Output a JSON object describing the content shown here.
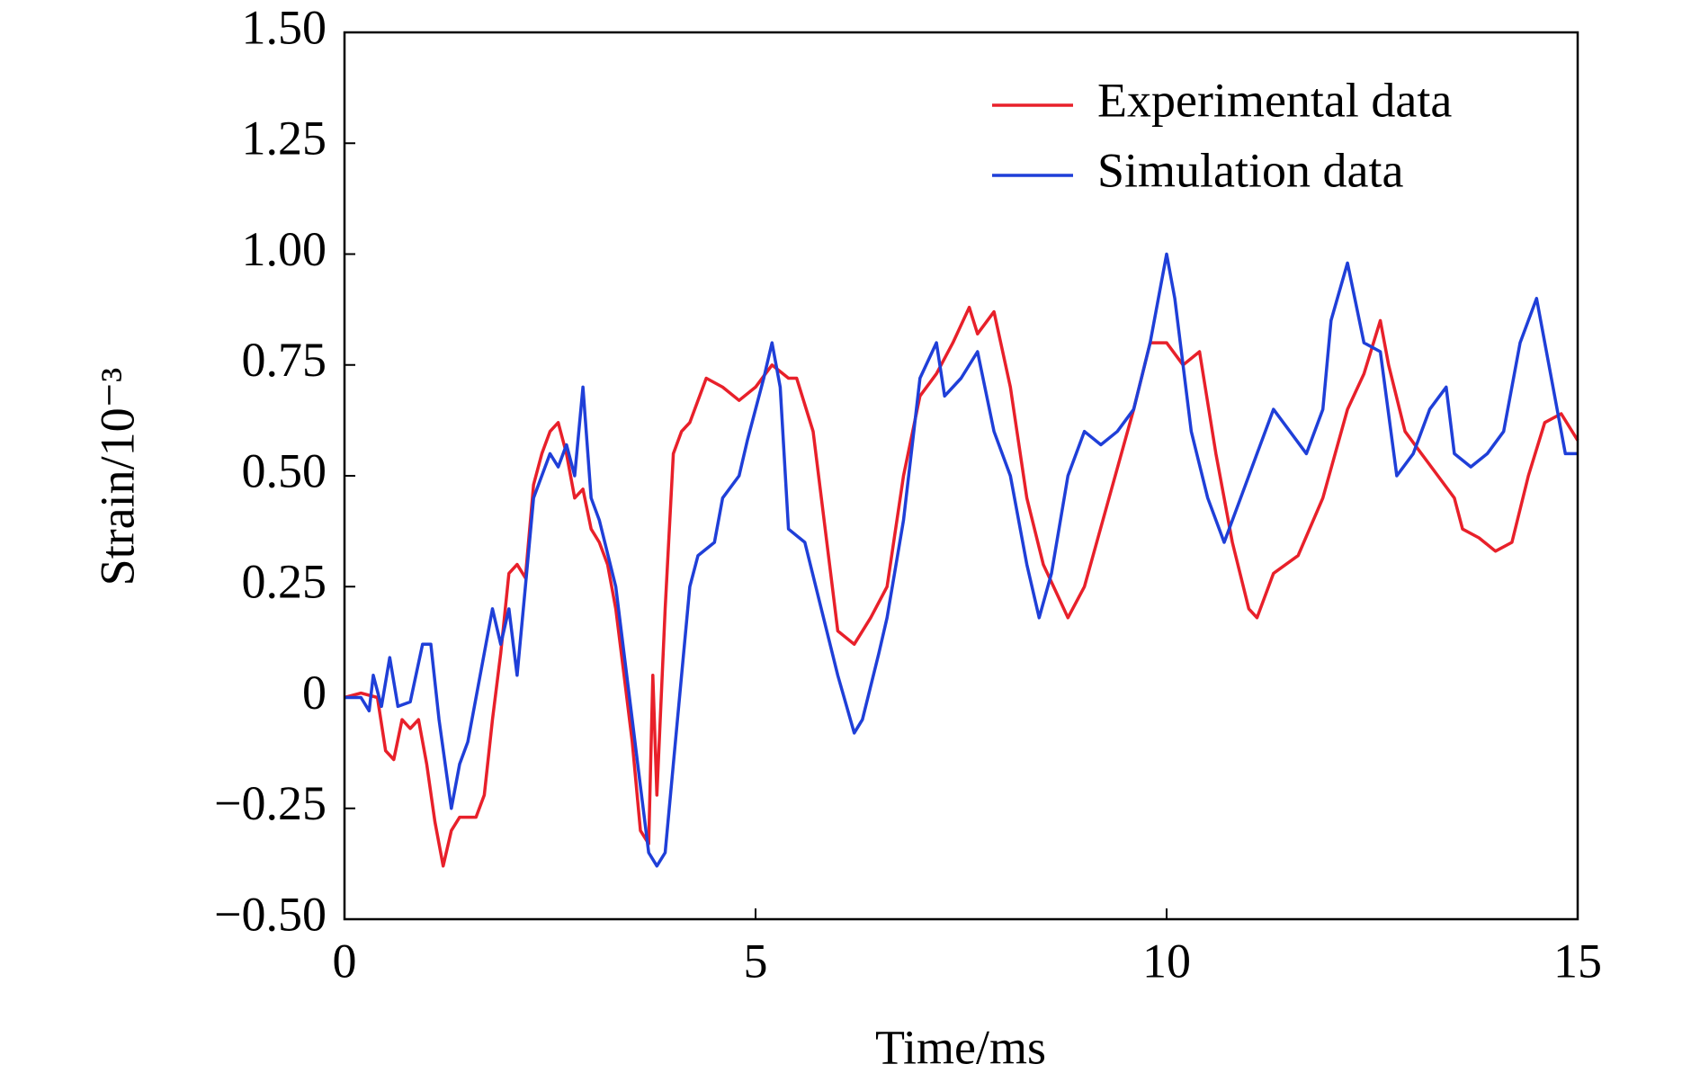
{
  "chart_data": {
    "type": "line",
    "xlabel": "Time/ms",
    "ylabel": "Strain/10⁻³",
    "xlim": [
      0,
      15
    ],
    "xticks": [
      0,
      5,
      10,
      15
    ],
    "ylim": [
      -0.5,
      1.5
    ],
    "yticks": [
      {
        "value": -0.5,
        "label": "−0.50"
      },
      {
        "value": -0.25,
        "label": "−0.25"
      },
      0,
      {
        "value": 0.25,
        "label": "0.25"
      },
      {
        "value": 0.5,
        "label": "0.50"
      },
      {
        "value": 0.75,
        "label": "0.75"
      },
      {
        "value": 1.0,
        "label": "1.00"
      },
      {
        "value": 1.25,
        "label": "1.25"
      },
      {
        "value": 1.5,
        "label": "1.50"
      }
    ],
    "legend": "upper right",
    "grid": false,
    "series": [
      {
        "name": "Experimental data",
        "color": "#e8202a",
        "x": [
          0,
          0.2,
          0.4,
          0.5,
          0.6,
          0.7,
          0.8,
          0.9,
          1.0,
          1.1,
          1.2,
          1.3,
          1.4,
          1.6,
          1.7,
          1.8,
          1.9,
          2.0,
          2.1,
          2.2,
          2.3,
          2.4,
          2.5,
          2.6,
          2.7,
          2.8,
          2.9,
          3.0,
          3.1,
          3.2,
          3.3,
          3.4,
          3.5,
          3.6,
          3.7,
          3.75,
          3.8,
          3.9,
          4.0,
          4.1,
          4.2,
          4.4,
          4.6,
          4.8,
          5.0,
          5.2,
          5.4,
          5.5,
          5.7,
          5.9,
          6.0,
          6.2,
          6.4,
          6.6,
          6.8,
          7.0,
          7.2,
          7.4,
          7.6,
          7.7,
          7.9,
          8.1,
          8.3,
          8.5,
          8.7,
          8.8,
          9.0,
          9.3,
          9.6,
          9.8,
          10.0,
          10.2,
          10.4,
          10.6,
          10.8,
          11.0,
          11.1,
          11.3,
          11.6,
          11.9,
          12.2,
          12.4,
          12.6,
          12.7,
          12.9,
          13.1,
          13.3,
          13.5,
          13.6,
          13.8,
          14.0,
          14.2,
          14.4,
          14.6,
          14.8,
          15.0
        ],
        "values": [
          0,
          0.01,
          0,
          -0.12,
          -0.14,
          -0.05,
          -0.07,
          -0.05,
          -0.15,
          -0.28,
          -0.38,
          -0.3,
          -0.27,
          -0.27,
          -0.22,
          -0.05,
          0.1,
          0.28,
          0.3,
          0.27,
          0.48,
          0.55,
          0.6,
          0.62,
          0.55,
          0.45,
          0.47,
          0.38,
          0.35,
          0.3,
          0.2,
          0.05,
          -0.1,
          -0.3,
          -0.33,
          0.05,
          -0.22,
          0.2,
          0.55,
          0.6,
          0.62,
          0.72,
          0.7,
          0.67,
          0.7,
          0.75,
          0.72,
          0.72,
          0.6,
          0.3,
          0.15,
          0.12,
          0.18,
          0.25,
          0.5,
          0.68,
          0.73,
          0.8,
          0.88,
          0.82,
          0.87,
          0.7,
          0.45,
          0.3,
          0.22,
          0.18,
          0.25,
          0.45,
          0.65,
          0.8,
          0.8,
          0.75,
          0.78,
          0.55,
          0.35,
          0.2,
          0.18,
          0.28,
          0.32,
          0.45,
          0.65,
          0.73,
          0.85,
          0.75,
          0.6,
          0.55,
          0.5,
          0.45,
          0.38,
          0.36,
          0.33,
          0.35,
          0.5,
          0.62,
          0.64,
          0.58
        ]
      },
      {
        "name": "Simulation data",
        "color": "#1f3fd8",
        "x": [
          0,
          0.2,
          0.3,
          0.35,
          0.45,
          0.55,
          0.65,
          0.8,
          0.95,
          1.05,
          1.15,
          1.3,
          1.4,
          1.5,
          1.7,
          1.8,
          1.9,
          2.0,
          2.1,
          2.2,
          2.3,
          2.5,
          2.6,
          2.7,
          2.8,
          2.9,
          3.0,
          3.1,
          3.3,
          3.5,
          3.6,
          3.7,
          3.8,
          3.9,
          4.0,
          4.2,
          4.3,
          4.5,
          4.6,
          4.8,
          4.9,
          5.1,
          5.2,
          5.3,
          5.4,
          5.6,
          5.8,
          6.0,
          6.2,
          6.3,
          6.5,
          6.6,
          6.8,
          7.0,
          7.2,
          7.3,
          7.5,
          7.7,
          7.9,
          8.1,
          8.3,
          8.45,
          8.6,
          8.8,
          9.0,
          9.2,
          9.4,
          9.6,
          9.8,
          10.0,
          10.1,
          10.3,
          10.5,
          10.7,
          10.9,
          11.1,
          11.3,
          11.5,
          11.7,
          11.9,
          12.0,
          12.2,
          12.4,
          12.6,
          12.8,
          13.0,
          13.2,
          13.4,
          13.5,
          13.7,
          13.9,
          14.1,
          14.3,
          14.5,
          14.7,
          14.85,
          15.0
        ],
        "values": [
          0,
          0,
          -0.03,
          0.05,
          -0.02,
          0.09,
          -0.02,
          -0.01,
          0.12,
          0.12,
          -0.05,
          -0.25,
          -0.15,
          -0.1,
          0.1,
          0.2,
          0.12,
          0.2,
          0.05,
          0.25,
          0.45,
          0.55,
          0.52,
          0.57,
          0.5,
          0.7,
          0.45,
          0.4,
          0.25,
          -0.05,
          -0.2,
          -0.35,
          -0.38,
          -0.35,
          -0.15,
          0.25,
          0.32,
          0.35,
          0.45,
          0.5,
          0.58,
          0.72,
          0.8,
          0.7,
          0.38,
          0.35,
          0.2,
          0.05,
          -0.08,
          -0.05,
          0.1,
          0.18,
          0.4,
          0.72,
          0.8,
          0.68,
          0.72,
          0.78,
          0.6,
          0.5,
          0.3,
          0.18,
          0.28,
          0.5,
          0.6,
          0.57,
          0.6,
          0.65,
          0.8,
          1.0,
          0.9,
          0.6,
          0.45,
          0.35,
          0.45,
          0.55,
          0.65,
          0.6,
          0.55,
          0.65,
          0.85,
          0.98,
          0.8,
          0.78,
          0.5,
          0.55,
          0.65,
          0.7,
          0.55,
          0.52,
          0.55,
          0.6,
          0.8,
          0.9,
          0.7,
          0.55,
          0.55
        ]
      }
    ]
  }
}
